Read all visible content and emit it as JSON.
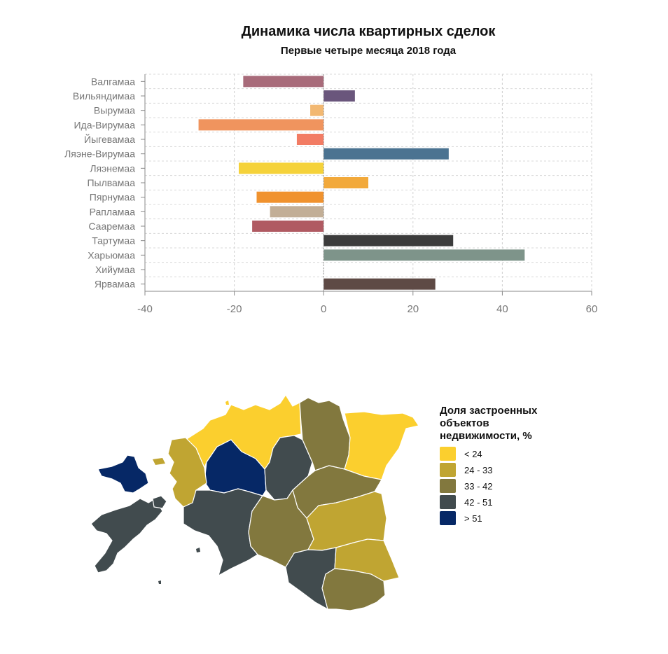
{
  "chart_data": [
    {
      "type": "bar",
      "orientation": "horizontal",
      "title": "Динамика числа квартирных сделок",
      "subtitle": "Первые четыре месяца 2018 года",
      "categories": [
        "Валгамаа",
        "Вильяндимаа",
        "Вырумаа",
        "Ида-Вирумаа",
        "Йыгевамаа",
        "Ляэне-Вирумаа",
        "Ляэнемаа",
        "Пылвамаа",
        "Пярнумаа",
        "Рапламаа",
        "Сааремаа",
        "Тартумаа",
        "Харьюмаа",
        "Хийумаа",
        "Ярвамаа"
      ],
      "values": [
        -18,
        7,
        -3,
        -28,
        -6,
        28,
        -19,
        10,
        -15,
        -12,
        -16,
        29,
        45,
        0,
        25
      ],
      "colors": [
        "#a86b7a",
        "#6a567c",
        "#f2b872",
        "#f0945e",
        "#f27c64",
        "#4b7391",
        "#f5d23a",
        "#f2a93b",
        "#f0922e",
        "#c2ae96",
        "#b05a62",
        "#3c3c3c",
        "#7e948a",
        "#cccccc",
        "#5e4a45"
      ],
      "xlim": [
        -40,
        60
      ],
      "xticks": [
        -40,
        -20,
        0,
        20,
        40,
        60
      ],
      "xlabel": "",
      "ylabel": "",
      "grid": true
    },
    {
      "type": "choropleth",
      "legend_title": "Доля застроенных объектов недвижимости, %",
      "legend": [
        {
          "label": "< 24",
          "color": "#fbcf2e"
        },
        {
          "label": "24 - 33",
          "color": "#c0a532"
        },
        {
          "label": "33 - 42",
          "color": "#82783e"
        },
        {
          "label": "42 - 51",
          "color": "#414b4e"
        },
        {
          "label": "> 51",
          "color": "#062866"
        }
      ]
    }
  ]
}
